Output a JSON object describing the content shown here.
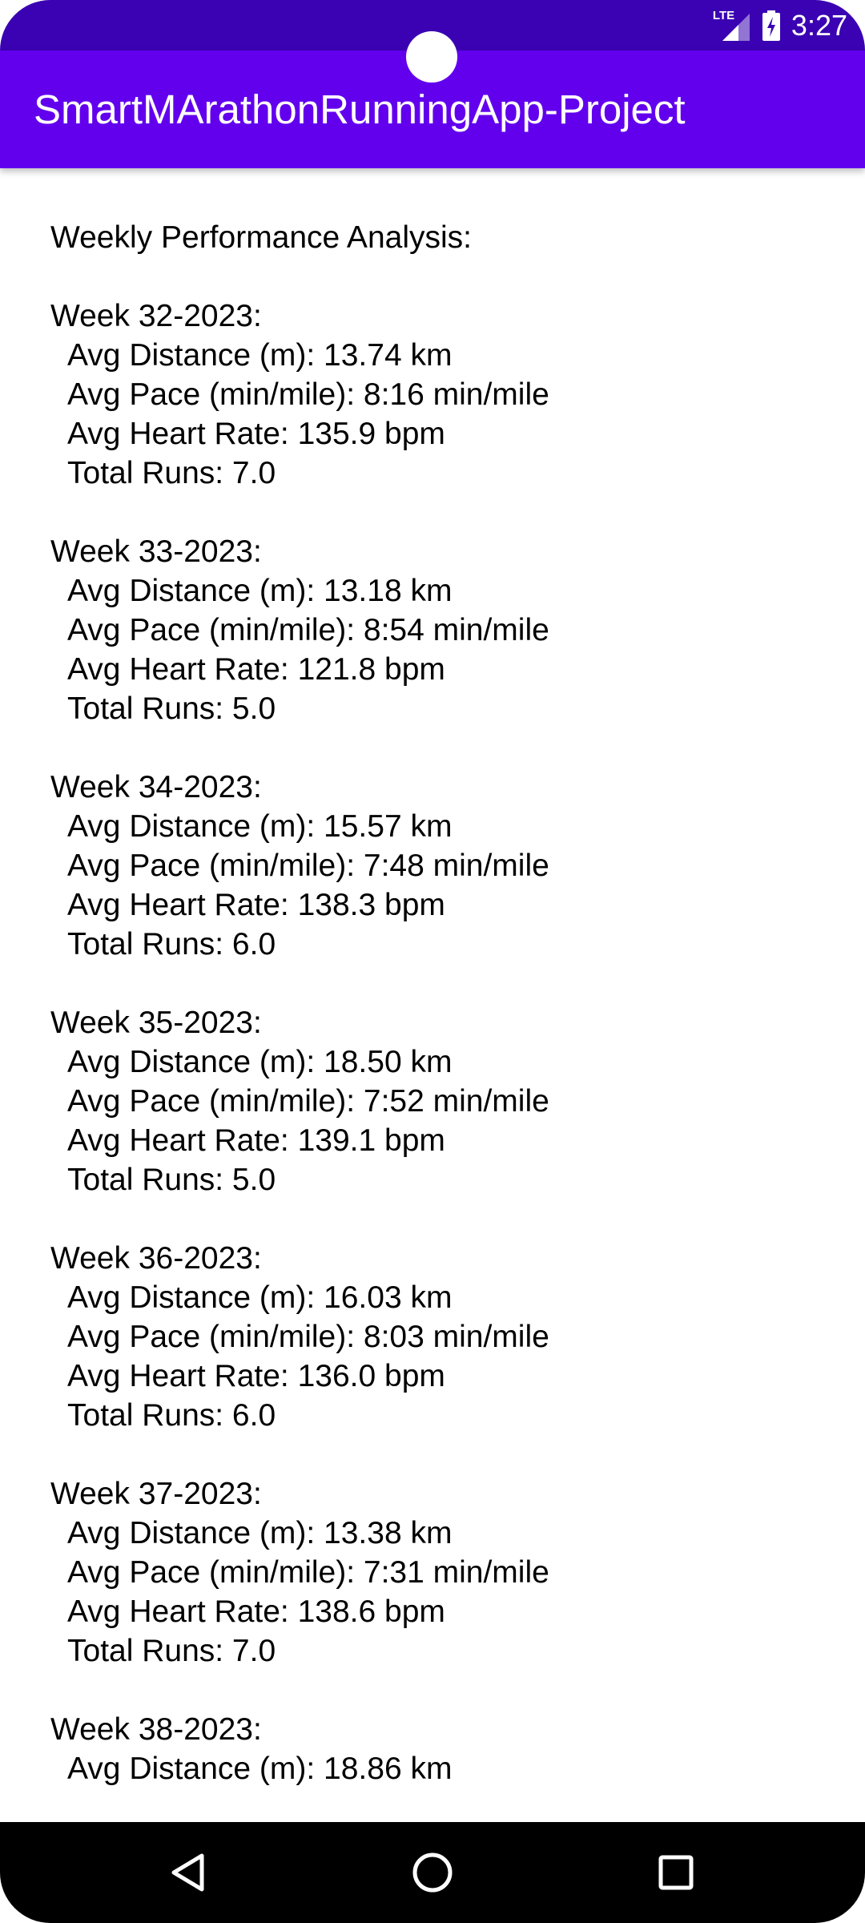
{
  "status_bar": {
    "network": "LTE",
    "time": "3:27"
  },
  "app_bar": {
    "title": "SmartMArathonRunningApp-Project"
  },
  "analysis": {
    "heading": "Weekly Performance Analysis:",
    "weeks": [
      {
        "week": "Week 32-2023:",
        "avg_distance": "Avg Distance (m): 13.74 km",
        "avg_pace": "Avg Pace (min/mile): 8:16 min/mile",
        "avg_heart_rate": "Avg Heart Rate: 135.9 bpm",
        "total_runs": "Total Runs: 7.0"
      },
      {
        "week": "Week 33-2023:",
        "avg_distance": "Avg Distance (m): 13.18 km",
        "avg_pace": "Avg Pace (min/mile): 8:54 min/mile",
        "avg_heart_rate": "Avg Heart Rate: 121.8 bpm",
        "total_runs": "Total Runs: 5.0"
      },
      {
        "week": "Week 34-2023:",
        "avg_distance": "Avg Distance (m): 15.57 km",
        "avg_pace": "Avg Pace (min/mile): 7:48 min/mile",
        "avg_heart_rate": "Avg Heart Rate: 138.3 bpm",
        "total_runs": "Total Runs: 6.0"
      },
      {
        "week": "Week 35-2023:",
        "avg_distance": "Avg Distance (m): 18.50 km",
        "avg_pace": "Avg Pace (min/mile): 7:52 min/mile",
        "avg_heart_rate": "Avg Heart Rate: 139.1 bpm",
        "total_runs": "Total Runs: 5.0"
      },
      {
        "week": "Week 36-2023:",
        "avg_distance": "Avg Distance (m): 16.03 km",
        "avg_pace": "Avg Pace (min/mile): 8:03 min/mile",
        "avg_heart_rate": "Avg Heart Rate: 136.0 bpm",
        "total_runs": "Total Runs: 6.0"
      },
      {
        "week": "Week 37-2023:",
        "avg_distance": "Avg Distance (m): 13.38 km",
        "avg_pace": "Avg Pace (min/mile): 7:31 min/mile",
        "avg_heart_rate": "Avg Heart Rate: 138.6 bpm",
        "total_runs": "Total Runs: 7.0"
      },
      {
        "week": "Week 38-2023:",
        "avg_distance": "Avg Distance (m): 18.86 km"
      }
    ]
  },
  "icons": {
    "signal": "cell-signal-icon",
    "battery": "battery-charging-icon",
    "back": "back-triangle-icon",
    "home": "home-circle-icon",
    "recents": "recents-square-icon"
  },
  "colors": {
    "status_bar": "#3a02b2",
    "app_bar": "#6200ee",
    "nav_bar": "#000000",
    "text": "#000000"
  }
}
